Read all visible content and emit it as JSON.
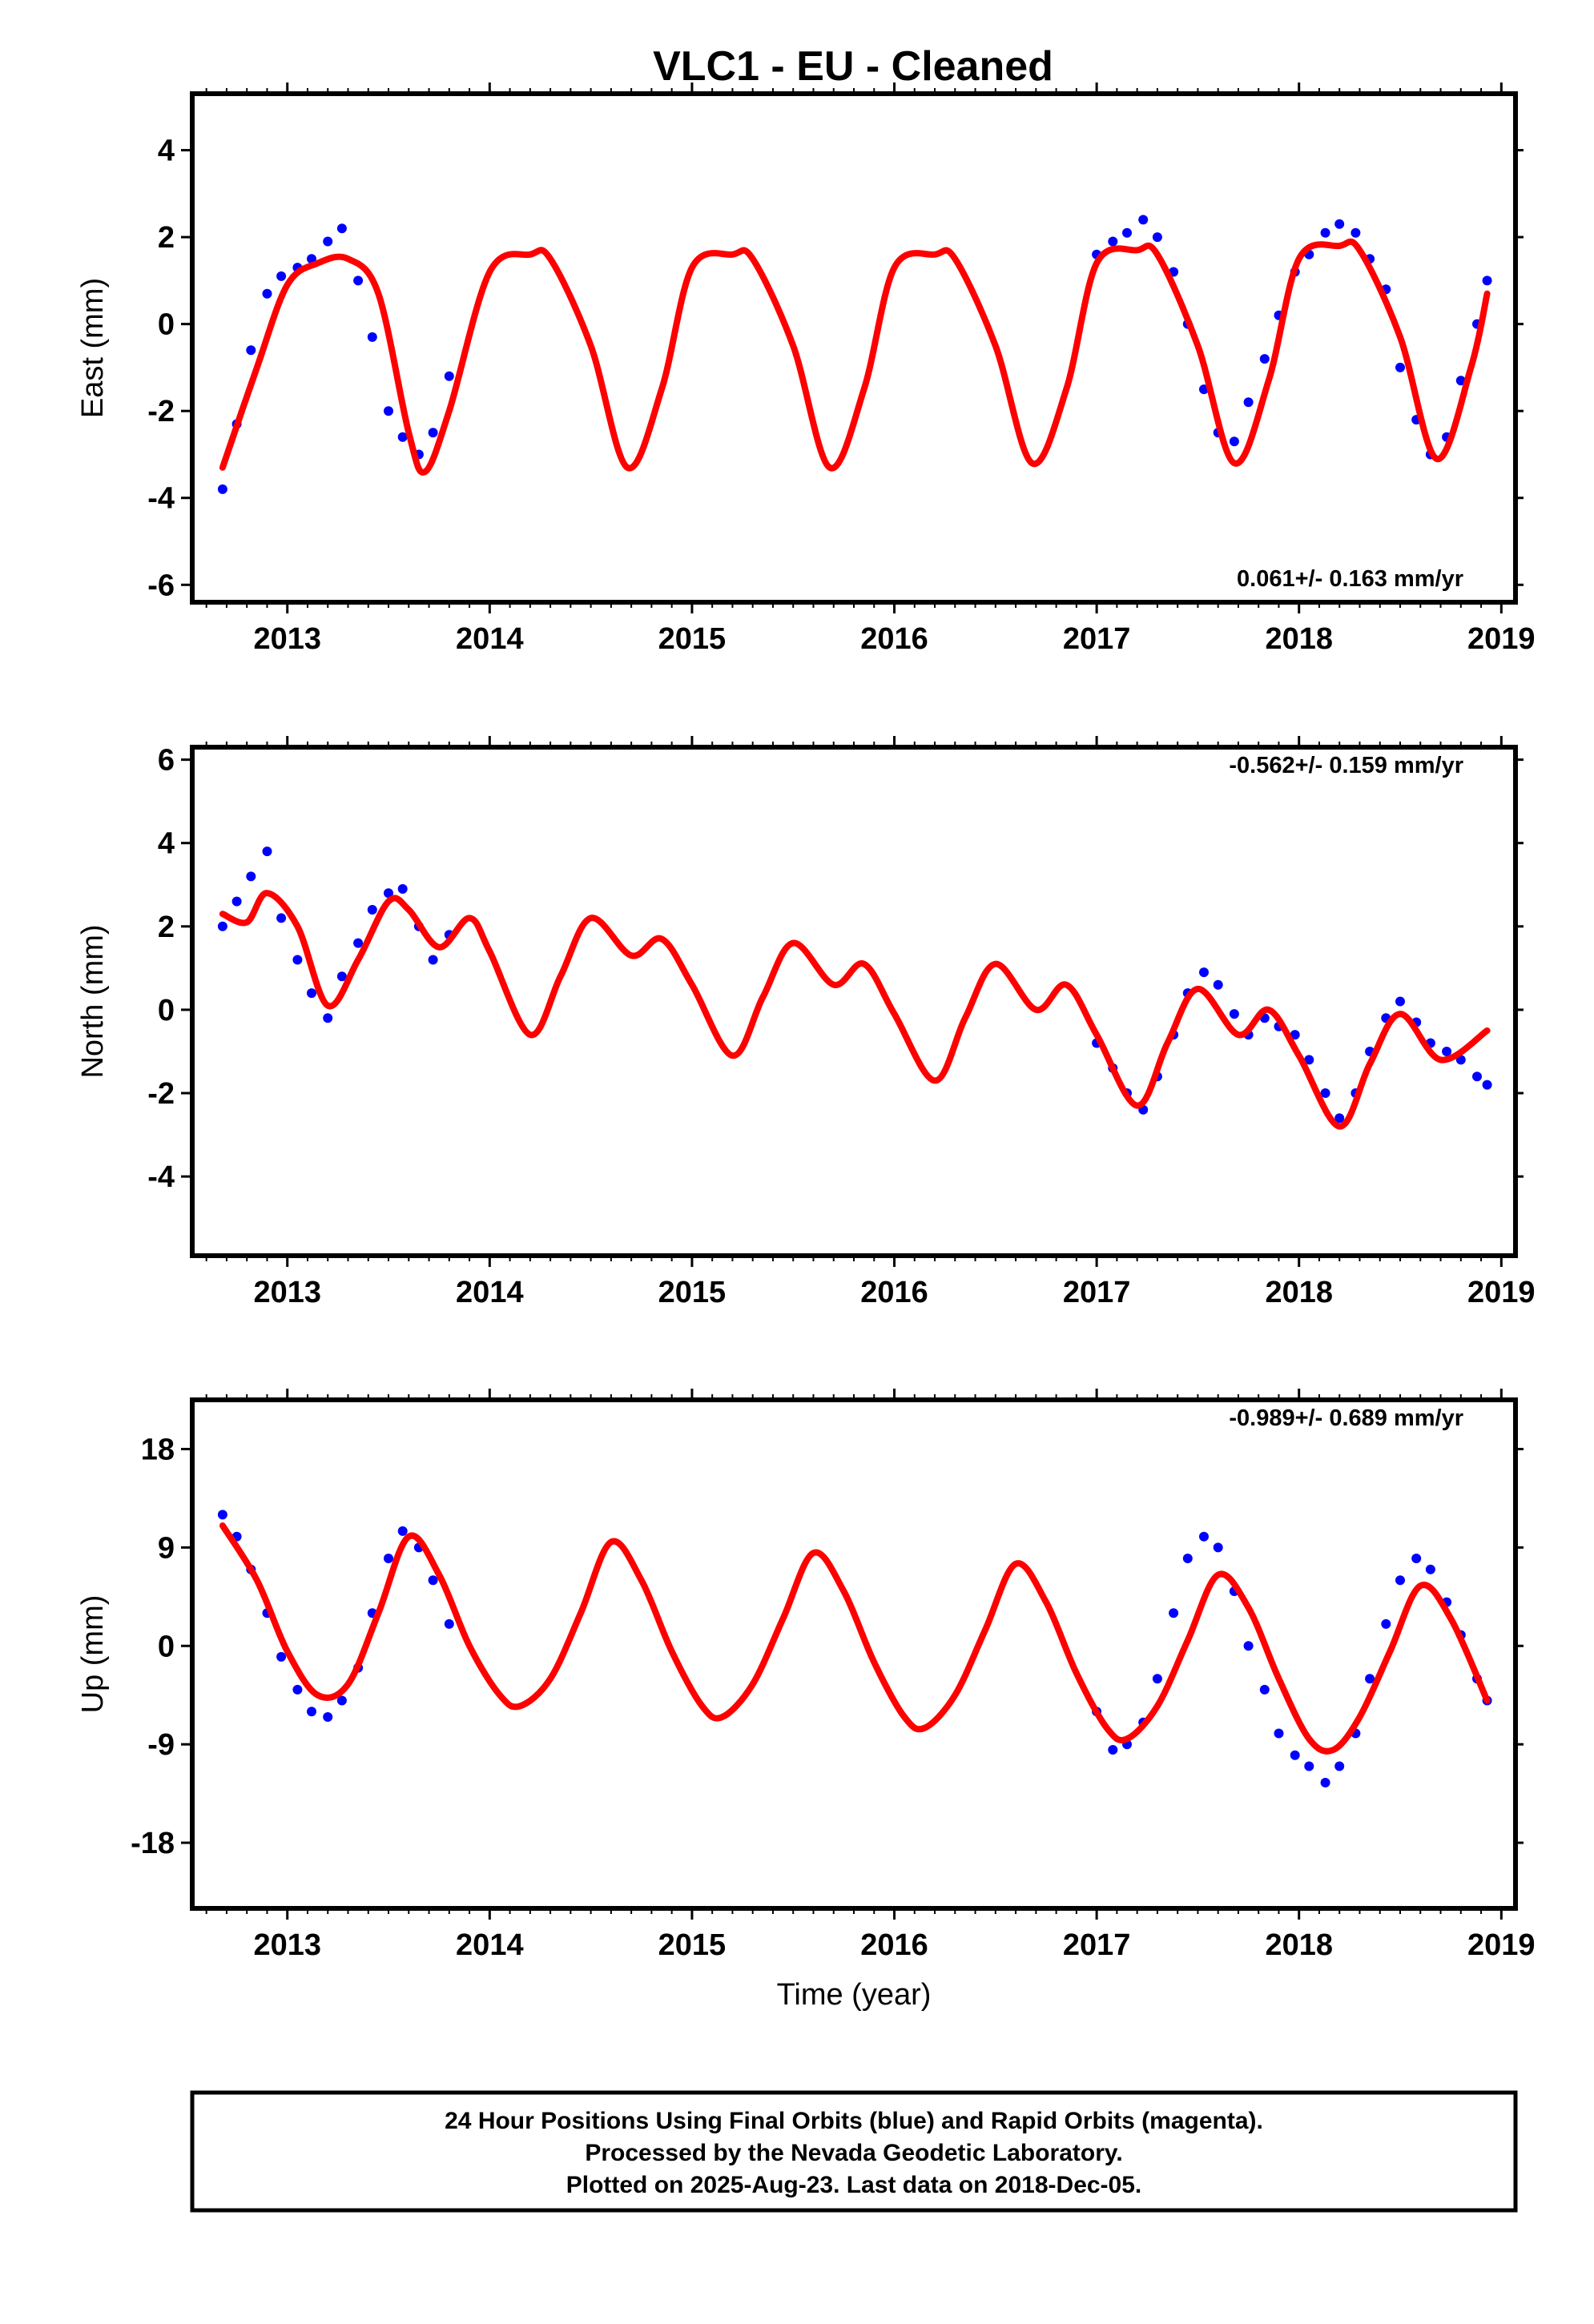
{
  "title": "VLC1  - EU - Cleaned",
  "colors": {
    "observed": "#0000ff",
    "model": "#ff0000",
    "frame": "#000000"
  },
  "chart_data": [
    {
      "type": "scatter",
      "ylabel": "East (mm)",
      "xlabel": "",
      "xlim": [
        2012.53,
        2019.07
      ],
      "ylim": [
        -6.4,
        5.3
      ],
      "yticks": [
        -6,
        -4,
        -2,
        0,
        2,
        4
      ],
      "xticks": [
        2013,
        2014,
        2015,
        2016,
        2017,
        2018,
        2019
      ],
      "rate_label": "0.061+/- 0.163 mm/yr",
      "rate_position": "bottom-right",
      "series": [
        {
          "kind": "points",
          "x": [
            2012.68,
            2012.75,
            2012.82,
            2012.9,
            2012.97,
            2013.05,
            2013.12,
            2013.2,
            2013.27,
            2013.35,
            2013.42,
            2013.5,
            2013.57,
            2013.65,
            2013.72,
            2013.8,
            2017.0,
            2017.08,
            2017.15,
            2017.23,
            2017.3,
            2017.38,
            2017.45,
            2017.53,
            2017.6,
            2017.68,
            2017.75,
            2017.83,
            2017.9,
            2017.98,
            2018.05,
            2018.13,
            2018.2,
            2018.28,
            2018.35,
            2018.43,
            2018.5,
            2018.58,
            2018.65,
            2018.73,
            2018.8,
            2018.88,
            2018.93
          ],
          "y": [
            -3.8,
            -2.3,
            -0.6,
            0.7,
            1.1,
            1.3,
            1.5,
            1.9,
            2.2,
            1.0,
            -0.3,
            -2.0,
            -2.6,
            -3.0,
            -2.5,
            -1.2,
            1.6,
            1.9,
            2.1,
            2.4,
            2.0,
            1.2,
            0.0,
            -1.5,
            -2.5,
            -2.7,
            -1.8,
            -0.8,
            0.2,
            1.2,
            1.6,
            2.1,
            2.3,
            2.1,
            1.5,
            0.8,
            -1.0,
            -2.2,
            -3.0,
            -2.6,
            -1.3,
            0.0,
            1.0
          ]
        },
        {
          "kind": "model",
          "x": [
            2012.68,
            2012.85,
            2013.0,
            2013.15,
            2013.3,
            2013.45,
            2013.6,
            2013.68,
            2013.8,
            2014.0,
            2014.2,
            2014.3,
            2014.5,
            2014.68,
            2014.85,
            2015.0,
            2015.2,
            2015.3,
            2015.5,
            2015.68,
            2015.85,
            2016.0,
            2016.2,
            2016.3,
            2016.5,
            2016.68,
            2016.85,
            2017.0,
            2017.2,
            2017.3,
            2017.5,
            2017.68,
            2017.85,
            2018.0,
            2018.2,
            2018.3,
            2018.5,
            2018.68,
            2018.85,
            2018.93
          ],
          "y": [
            -3.3,
            -1.0,
            0.9,
            1.4,
            1.5,
            0.7,
            -2.5,
            -3.4,
            -2.0,
            1.2,
            1.6,
            1.5,
            -0.5,
            -3.3,
            -1.5,
            1.3,
            1.6,
            1.5,
            -0.5,
            -3.3,
            -1.5,
            1.3,
            1.6,
            1.5,
            -0.5,
            -3.2,
            -1.5,
            1.4,
            1.7,
            1.6,
            -0.5,
            -3.2,
            -1.3,
            1.5,
            1.8,
            1.7,
            -0.3,
            -3.1,
            -1.0,
            0.7
          ]
        }
      ]
    },
    {
      "type": "scatter",
      "ylabel": "North (mm)",
      "xlabel": "",
      "xlim": [
        2012.53,
        2019.07
      ],
      "ylim": [
        -5.9,
        6.3
      ],
      "yticks": [
        -4,
        -2,
        0,
        2,
        4,
        6
      ],
      "xticks": [
        2013,
        2014,
        2015,
        2016,
        2017,
        2018,
        2019
      ],
      "rate_label": "-0.562+/- 0.159 mm/yr",
      "rate_position": "top-right",
      "series": [
        {
          "kind": "points",
          "x": [
            2012.68,
            2012.75,
            2012.82,
            2012.9,
            2012.97,
            2013.05,
            2013.12,
            2013.2,
            2013.27,
            2013.35,
            2013.42,
            2013.5,
            2013.57,
            2013.65,
            2013.72,
            2013.8,
            2017.0,
            2017.08,
            2017.15,
            2017.23,
            2017.3,
            2017.38,
            2017.45,
            2017.53,
            2017.6,
            2017.68,
            2017.75,
            2017.83,
            2017.9,
            2017.98,
            2018.05,
            2018.13,
            2018.2,
            2018.28,
            2018.35,
            2018.43,
            2018.5,
            2018.58,
            2018.65,
            2018.73,
            2018.8,
            2018.88,
            2018.93
          ],
          "y": [
            2.0,
            2.6,
            3.2,
            3.8,
            2.2,
            1.2,
            0.4,
            -0.2,
            0.8,
            1.6,
            2.4,
            2.8,
            2.9,
            2.0,
            1.2,
            1.8,
            -0.8,
            -1.4,
            -2.0,
            -2.4,
            -1.6,
            -0.6,
            0.4,
            0.9,
            0.6,
            -0.1,
            -0.6,
            -0.2,
            -0.4,
            -0.6,
            -1.2,
            -2.0,
            -2.6,
            -2.0,
            -1.0,
            -0.2,
            0.2,
            -0.3,
            -0.8,
            -1.0,
            -1.2,
            -1.6,
            -1.8
          ]
        },
        {
          "kind": "model",
          "x": [
            2012.68,
            2012.8,
            2012.9,
            2013.05,
            2013.2,
            2013.35,
            2013.5,
            2013.6,
            2013.75,
            2013.9,
            2014.0,
            2014.2,
            2014.35,
            2014.5,
            2014.7,
            2014.85,
            2015.0,
            2015.2,
            2015.35,
            2015.5,
            2015.7,
            2015.85,
            2016.0,
            2016.2,
            2016.35,
            2016.5,
            2016.7,
            2016.85,
            2017.0,
            2017.2,
            2017.35,
            2017.5,
            2017.7,
            2017.85,
            2018.0,
            2018.2,
            2018.35,
            2018.5,
            2018.7,
            2018.93
          ],
          "y": [
            2.3,
            2.1,
            2.8,
            2.0,
            0.1,
            1.2,
            2.6,
            2.4,
            1.5,
            2.2,
            1.4,
            -0.6,
            0.8,
            2.2,
            1.3,
            1.7,
            0.6,
            -1.1,
            0.3,
            1.6,
            0.6,
            1.1,
            -0.1,
            -1.7,
            -0.2,
            1.1,
            0.0,
            0.6,
            -0.6,
            -2.3,
            -0.8,
            0.5,
            -0.6,
            0.0,
            -1.1,
            -2.8,
            -1.3,
            -0.1,
            -1.2,
            -0.5
          ]
        }
      ]
    },
    {
      "type": "scatter",
      "ylabel": "Up (mm)",
      "xlabel": "Time (year)",
      "xlim": [
        2012.53,
        2019.07
      ],
      "ylim": [
        -24.0,
        22.5
      ],
      "yticks": [
        -18,
        -9,
        0,
        9,
        18
      ],
      "xticks": [
        2013,
        2014,
        2015,
        2016,
        2017,
        2018,
        2019
      ],
      "rate_label": "-0.989+/- 0.689 mm/yr",
      "rate_position": "top-right",
      "series": [
        {
          "kind": "points",
          "x": [
            2012.68,
            2012.75,
            2012.82,
            2012.9,
            2012.97,
            2013.05,
            2013.12,
            2013.2,
            2013.27,
            2013.35,
            2013.42,
            2013.5,
            2013.57,
            2013.65,
            2013.72,
            2013.8,
            2017.0,
            2017.08,
            2017.15,
            2017.23,
            2017.3,
            2017.38,
            2017.45,
            2017.53,
            2017.6,
            2017.68,
            2017.75,
            2017.83,
            2017.9,
            2017.98,
            2018.05,
            2018.13,
            2018.2,
            2018.28,
            2018.35,
            2018.43,
            2018.5,
            2018.58,
            2018.65,
            2018.73,
            2018.8,
            2018.88,
            2018.93
          ],
          "y": [
            12.0,
            10.0,
            7.0,
            3.0,
            -1.0,
            -4.0,
            -6.0,
            -6.5,
            -5.0,
            -2.0,
            3.0,
            8.0,
            10.5,
            9.0,
            6.0,
            2.0,
            -6.0,
            -9.5,
            -9.0,
            -7.0,
            -3.0,
            3.0,
            8.0,
            10.0,
            9.0,
            5.0,
            0.0,
            -4.0,
            -8.0,
            -10.0,
            -11.0,
            -12.5,
            -11.0,
            -8.0,
            -3.0,
            2.0,
            6.0,
            8.0,
            7.0,
            4.0,
            1.0,
            -3.0,
            -5.0
          ]
        },
        {
          "kind": "model",
          "x": [
            2012.68,
            2012.85,
            2013.0,
            2013.15,
            2013.3,
            2013.45,
            2013.6,
            2013.75,
            2013.9,
            2014.05,
            2014.15,
            2014.3,
            2014.45,
            2014.6,
            2014.75,
            2014.9,
            2015.05,
            2015.15,
            2015.3,
            2015.45,
            2015.6,
            2015.75,
            2015.9,
            2016.05,
            2016.15,
            2016.3,
            2016.45,
            2016.6,
            2016.75,
            2016.9,
            2017.05,
            2017.15,
            2017.3,
            2017.45,
            2017.6,
            2017.75,
            2017.9,
            2018.05,
            2018.17,
            2018.3,
            2018.45,
            2018.6,
            2018.75,
            2018.93
          ],
          "y": [
            11.0,
            6.0,
            -0.5,
            -4.5,
            -3.5,
            3.0,
            10.0,
            6.5,
            0.0,
            -4.5,
            -5.5,
            -3.0,
            3.0,
            9.5,
            6.0,
            -0.5,
            -5.5,
            -6.5,
            -3.5,
            2.5,
            8.5,
            5.0,
            -1.5,
            -6.5,
            -7.5,
            -4.5,
            1.5,
            7.5,
            4.0,
            -2.5,
            -7.5,
            -8.5,
            -5.5,
            0.5,
            6.5,
            3.5,
            -3.0,
            -8.5,
            -9.5,
            -6.5,
            -0.5,
            5.5,
            2.5,
            -5.0
          ]
        }
      ]
    }
  ],
  "footer": {
    "line1": "24 Hour Positions Using Final Orbits (blue) and Rapid Orbits (magenta).",
    "line2": "Processed by the Nevada Geodetic Laboratory.",
    "line3": "Plotted on 2025-Aug-23. Last data on 2018-Dec-05."
  }
}
